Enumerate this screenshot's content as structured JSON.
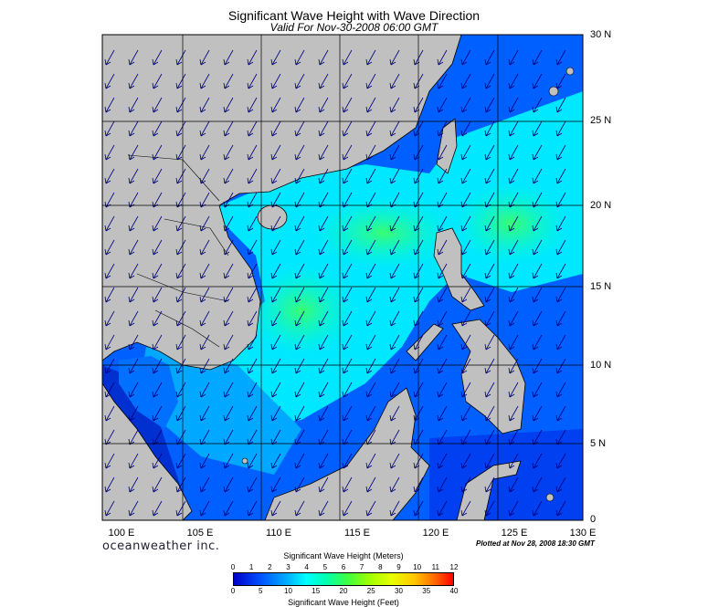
{
  "title": "Significant Wave Height with Wave Direction",
  "subtitle": "Valid For Nov-30-2008 06:00 GMT",
  "lat_labels": [
    "30 N",
    "25 N",
    "20 N",
    "15 N",
    "10 N",
    "5 N",
    "0"
  ],
  "lon_labels": [
    "100 E",
    "105 E",
    "110 E",
    "115 E",
    "120 E",
    "125 E",
    "130 E"
  ],
  "branding": "oceanweather inc.",
  "plotted": "Plotted at Nov 28, 2008 18:30 GMT",
  "legend": {
    "meters_title": "Significant Wave Height (Meters)",
    "meters_ticks": [
      "0",
      "1",
      "2",
      "3",
      "4",
      "5",
      "6",
      "7",
      "8",
      "9",
      "10",
      "11",
      "12"
    ],
    "feet_ticks": [
      "0",
      "5",
      "10",
      "15",
      "20",
      "25",
      "30",
      "35",
      "40"
    ],
    "feet_title": "Significant Wave Height (Feet)"
  },
  "colors": {
    "land": "#c0c0c0",
    "coast": "#000000",
    "arrow": "#000080"
  },
  "map_extent": {
    "lon": [
      100,
      130
    ],
    "lat": [
      0,
      30
    ]
  },
  "wave_direction": "from northeast, arrows point southwest"
}
